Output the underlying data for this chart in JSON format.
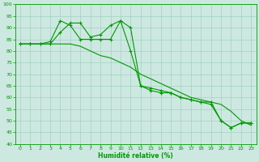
{
  "xlabel": "Humidité relative (%)",
  "xlim": [
    -0.5,
    23.5
  ],
  "ylim": [
    40,
    100
  ],
  "yticks": [
    40,
    45,
    50,
    55,
    60,
    65,
    70,
    75,
    80,
    85,
    90,
    95,
    100
  ],
  "xticks": [
    0,
    1,
    2,
    3,
    4,
    5,
    6,
    7,
    8,
    9,
    10,
    11,
    12,
    13,
    14,
    15,
    16,
    17,
    18,
    19,
    20,
    21,
    22,
    23
  ],
  "background_color": "#cce8e0",
  "grid_color": "#99ccbb",
  "line_color": "#009900",
  "line1_x": [
    0,
    1,
    2,
    3,
    4,
    5,
    6,
    7,
    8,
    9,
    10,
    11,
    12,
    13,
    14,
    15,
    16,
    17,
    18,
    19,
    20,
    21,
    22,
    23
  ],
  "line1_y": [
    83,
    83,
    83,
    83,
    88,
    92,
    92,
    86,
    87,
    91,
    93,
    90,
    65,
    64,
    63,
    62,
    60,
    59,
    58,
    58,
    50,
    47,
    49,
    49
  ],
  "line2_x": [
    0,
    1,
    2,
    3,
    4,
    5,
    6,
    7,
    8,
    9,
    10,
    11,
    12,
    13,
    14,
    15,
    16,
    17,
    18,
    19,
    20,
    21,
    22,
    23
  ],
  "line2_y": [
    83,
    83,
    83,
    84,
    93,
    91,
    85,
    85,
    85,
    85,
    93,
    80,
    65,
    63,
    62,
    62,
    60,
    59,
    58,
    57,
    50,
    47,
    49,
    49
  ],
  "line3_x": [
    0,
    1,
    2,
    3,
    4,
    5,
    6,
    7,
    8,
    9,
    10,
    11,
    12,
    13,
    14,
    15,
    16,
    17,
    18,
    19,
    20,
    21,
    22,
    23
  ],
  "line3_y": [
    83,
    83,
    83,
    83,
    83,
    83,
    82,
    80,
    78,
    77,
    75,
    73,
    70,
    68,
    66,
    64,
    62,
    60,
    59,
    58,
    57,
    54,
    50,
    48
  ],
  "tick_fontsize": 4.5,
  "xlabel_fontsize": 5.5
}
